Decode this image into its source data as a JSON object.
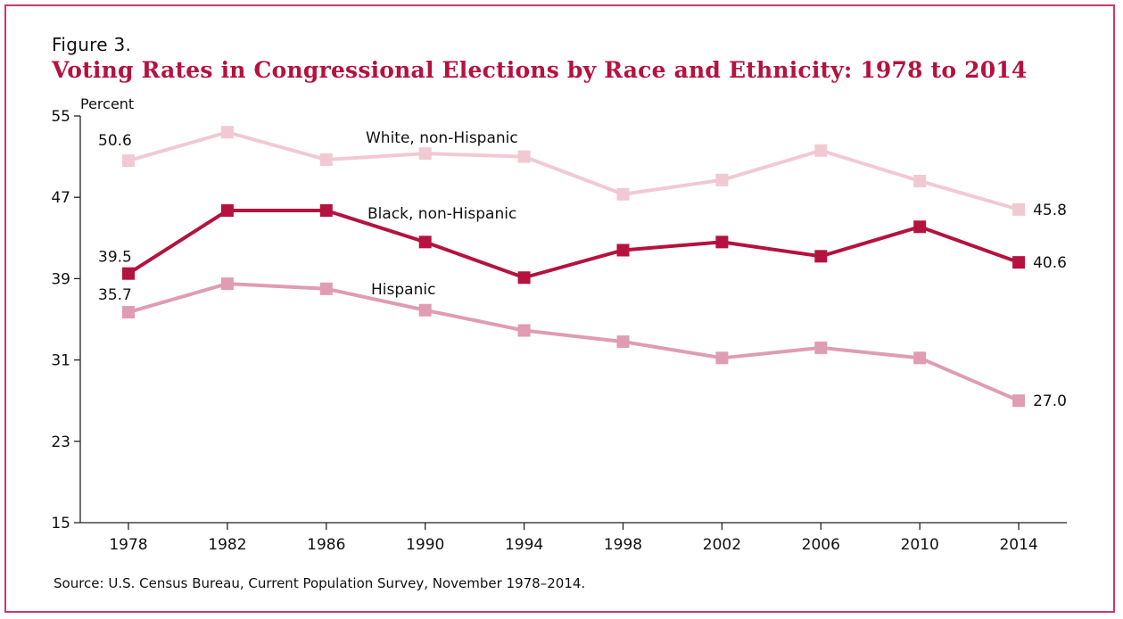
{
  "figure_label": "Figure 3.",
  "source": "Source: U.S. Census Bureau, Current Population Survey, November 1978–2014.",
  "colors": {
    "frame": "#c9396a",
    "title": "#b5123f",
    "white": "#f1c9d3",
    "black": "#b5123f",
    "hispanic": "#df9cb2"
  },
  "chart_data": {
    "type": "line",
    "title": "Voting Rates in Congressional Elections by Race and Ethnicity: 1978 to 2014",
    "xlabel": "",
    "ylabel": "Percent",
    "ylim": [
      15,
      55
    ],
    "yticks": [
      15,
      23,
      31,
      39,
      47,
      55
    ],
    "categories": [
      "1978",
      "1982",
      "1986",
      "1990",
      "1994",
      "1998",
      "2002",
      "2006",
      "2010",
      "2014"
    ],
    "series": [
      {
        "name": "White, non-Hispanic",
        "key": "white",
        "values": [
          50.6,
          53.4,
          50.7,
          51.3,
          51.0,
          47.3,
          48.7,
          51.6,
          48.6,
          45.8
        ],
        "start_label": "50.6",
        "end_label": "45.8"
      },
      {
        "name": "Black, non-Hispanic",
        "key": "black",
        "values": [
          39.5,
          45.7,
          45.7,
          42.6,
          39.1,
          41.8,
          42.6,
          41.2,
          44.1,
          40.6
        ],
        "start_label": "39.5",
        "end_label": "40.6"
      },
      {
        "name": "Hispanic",
        "key": "hispanic",
        "values": [
          35.7,
          38.5,
          38.0,
          35.9,
          33.9,
          32.8,
          31.2,
          32.2,
          31.2,
          27.0
        ],
        "start_label": "35.7",
        "end_label": "27.0"
      }
    ]
  }
}
